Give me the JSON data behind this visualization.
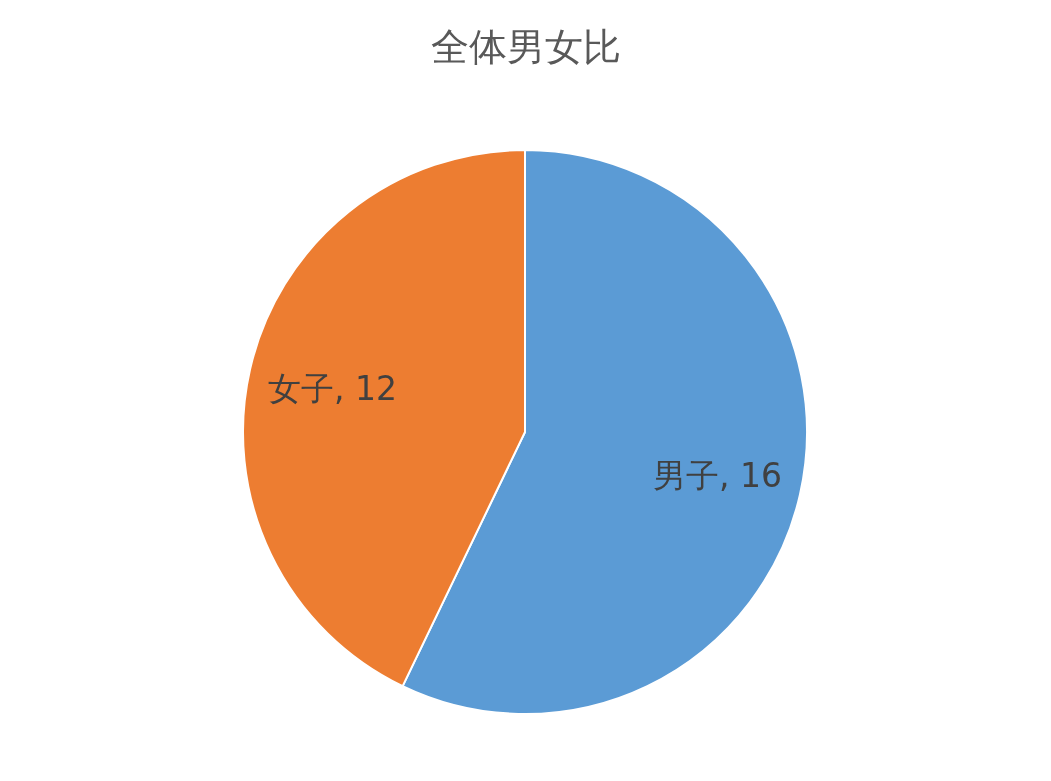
{
  "chart_data": {
    "type": "pie",
    "title": "全体男女比",
    "categories": [
      null,
      null
    ],
    "values": [
      16,
      12
    ],
    "colors": [
      "#5b9bd5",
      "#ed7d31"
    ],
    "value_labels": [
      "男子, 16",
      "女子, 12"
    ],
    "legend": false
  }
}
